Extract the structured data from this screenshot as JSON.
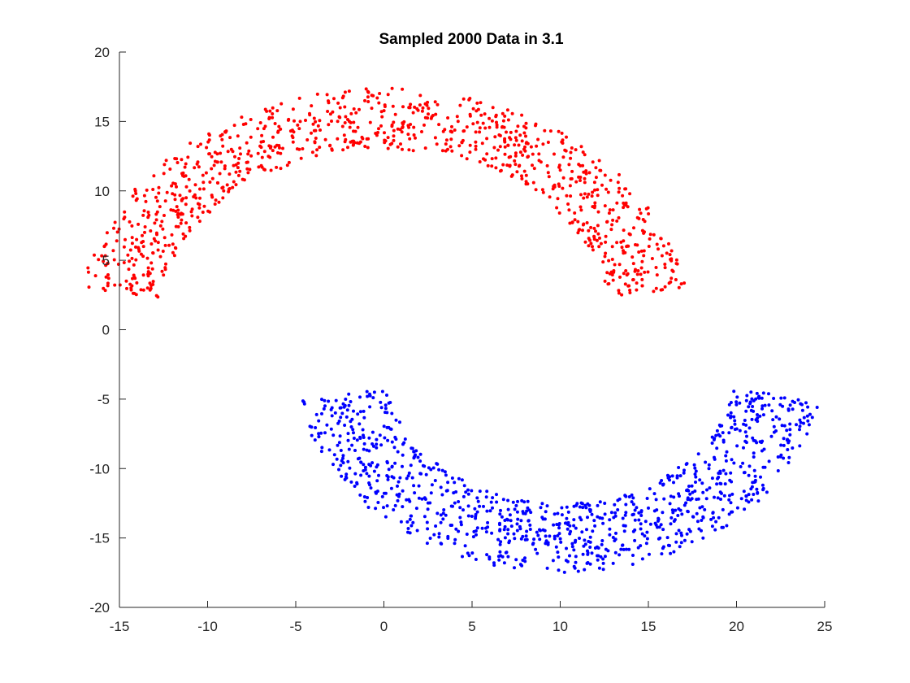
{
  "chart_data": {
    "type": "scatter",
    "title": "Sampled 2000 Data in 3.1",
    "xlabel": "",
    "ylabel": "",
    "xlim": [
      -15,
      25
    ],
    "ylim": [
      -20,
      20
    ],
    "xticks": [
      -15,
      -10,
      -5,
      0,
      5,
      10,
      15,
      20,
      25
    ],
    "yticks": [
      -20,
      -15,
      -10,
      -5,
      0,
      5,
      10,
      15,
      20
    ],
    "grid": false,
    "box": false,
    "point_count": 2000,
    "series": [
      {
        "color": "#ff0000",
        "shape": "half-ring (upper)",
        "center": [
          0,
          0
        ],
        "radius_range": [
          13,
          17.4
        ],
        "angle_range_deg": [
          10,
          170
        ],
        "count": 1000
      },
      {
        "color": "#0000ff",
        "shape": "half-ring (lower)",
        "center": [
          10,
          -2.5
        ],
        "radius_range": [
          10,
          15
        ],
        "angle_range_deg": [
          -170,
          -10
        ],
        "count": 1000
      }
    ]
  }
}
